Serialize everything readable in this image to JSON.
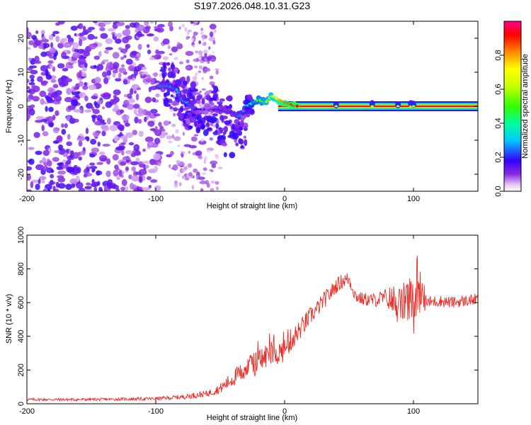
{
  "figure_title": "S197.2026.048.10.31.G23",
  "chart_data": [
    {
      "type": "heatmap",
      "title": "S197.2026.048.10.31.G23",
      "xlabel": "Height of straight line (km)",
      "ylabel": "Frequency (Hz)",
      "xlim": [
        -200,
        150
      ],
      "ylim": [
        -25,
        25
      ],
      "xticks": [
        -200,
        -100,
        0,
        100
      ],
      "yticks": [
        -20,
        -10,
        0,
        10,
        20
      ],
      "colorbar": {
        "label": "Normalized spectral amplitude",
        "range": [
          0,
          1
        ],
        "ticks": [
          "0.0",
          "0.2",
          "0.4",
          "0.6",
          "0.8"
        ],
        "tick_values": [
          0,
          0.2,
          0.4,
          0.6,
          0.8
        ],
        "colormap": "rainbow"
      },
      "ridge": {
        "x": [
          -97,
          -90,
          -84,
          -80,
          -75,
          -70,
          -60,
          -50,
          -40,
          -35,
          -30,
          -25,
          -20,
          -15,
          -10,
          -5,
          0,
          5,
          10,
          20,
          40,
          60,
          80,
          100,
          120,
          150
        ],
        "freq": [
          6,
          6,
          5,
          2,
          1,
          -1,
          -1,
          -1,
          -2,
          -3,
          0,
          1,
          2,
          1,
          3,
          2,
          1,
          0.5,
          0,
          0,
          0,
          0,
          0,
          0,
          0,
          0
        ],
        "amplitude": [
          0.25,
          0.25,
          0.3,
          0.25,
          0.3,
          0.2,
          0.15,
          0.2,
          0.2,
          0.25,
          0.3,
          0.45,
          0.5,
          0.55,
          0.6,
          0.75,
          0.85,
          0.9,
          0.92,
          0.95,
          0.95,
          0.95,
          0.95,
          0.95,
          0.95,
          0.95
        ]
      }
    },
    {
      "type": "line",
      "xlabel": "Height of straight line (km)",
      "ylabel": "SNR (10 * v/v)",
      "xlim": [
        -200,
        150
      ],
      "ylim": [
        0,
        1000
      ],
      "xticks": [
        -200,
        -100,
        0,
        100
      ],
      "yticks": [
        0,
        200,
        400,
        600,
        800,
        1000
      ],
      "series": [
        {
          "name": "SNR",
          "color": "#ee2a24",
          "x": [
            -200,
            -180,
            -160,
            -140,
            -120,
            -100,
            -90,
            -80,
            -70,
            -60,
            -50,
            -45,
            -40,
            -35,
            -30,
            -25,
            -20,
            -15,
            -10,
            -5,
            0,
            5,
            10,
            15,
            20,
            25,
            30,
            35,
            40,
            45,
            50,
            55,
            60,
            70,
            80,
            85,
            90,
            95,
            100,
            103,
            105,
            110,
            120,
            130,
            140,
            150
          ],
          "y": [
            25,
            25,
            25,
            26,
            28,
            30,
            35,
            40,
            50,
            60,
            90,
            120,
            150,
            180,
            210,
            230,
            250,
            280,
            310,
            300,
            320,
            380,
            420,
            470,
            520,
            560,
            610,
            650,
            700,
            730,
            740,
            640,
            620,
            615,
            630,
            600,
            580,
            620,
            560,
            700,
            620,
            600,
            610,
            600,
            610,
            620
          ],
          "noise_amplitude": [
            8,
            8,
            8,
            8,
            9,
            10,
            12,
            14,
            18,
            20,
            30,
            40,
            50,
            60,
            65,
            70,
            80,
            80,
            80,
            70,
            70,
            70,
            60,
            60,
            55,
            50,
            50,
            50,
            45,
            45,
            45,
            40,
            40,
            40,
            60,
            120,
            110,
            140,
            180,
            220,
            150,
            40,
            35,
            35,
            35,
            35
          ]
        }
      ]
    }
  ]
}
